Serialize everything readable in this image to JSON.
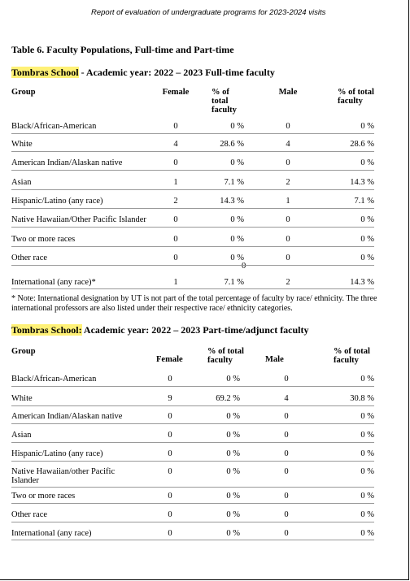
{
  "header": {
    "text": "Report of evaluation of undergraduate programs for 2023-2024 visits"
  },
  "title": "Table 6. Faculty Populations, Full-time and Part-time",
  "table1": {
    "school": "Tombras School",
    "heading": " - Academic year: 2022 – 2023 Full-time faculty",
    "columns": [
      "Group",
      "Female",
      "% of total faculty",
      "Male",
      "% of total faculty"
    ],
    "rows": [
      [
        "Black/African-American",
        "0",
        "0 %",
        "0",
        "0 %"
      ],
      [
        "White",
        "4",
        "28.6 %",
        "4",
        "28.6 %"
      ],
      [
        "American Indian/Alaskan native",
        "0",
        "0 %",
        "0",
        "0 %"
      ],
      [
        "Asian",
        "1",
        "7.1 %",
        "2",
        "14.3 %"
      ],
      [
        "Hispanic/Latino (any race)",
        "2",
        "14.3 %",
        "1",
        "7.1 %"
      ],
      [
        "Native Hawaiian/Other Pacific Islander",
        "0",
        "0 %",
        "0",
        "0 %"
      ],
      [
        "Two or more races",
        "0",
        "0 %",
        "0",
        "0 %"
      ],
      [
        "Other race",
        "0",
        "0 %",
        "0",
        "0 %"
      ],
      [
        "International (any race)*",
        "1",
        "7.1 %",
        "2",
        "14.3 %"
      ]
    ],
    "stray": "0",
    "note": "* Note: International designation by UT is not part of the total percentage of faculty by race/ ethnicity. The three international professors are also listed under their respective race/ ethnicity categories."
  },
  "table2": {
    "school": "Tombras School:",
    "heading": " Academic year: 2022 – 2023 Part-time/adjunct faculty",
    "columns": [
      "Group",
      "Female",
      "% of total faculty",
      "Male",
      "% of total faculty"
    ],
    "rows": [
      [
        "Black/African-American",
        "0",
        "0 %",
        "0",
        "0 %"
      ],
      [
        "White",
        "9",
        "69.2 %",
        "4",
        "30.8 %"
      ],
      [
        "American Indian/Alaskan native",
        "0",
        "0 %",
        "0",
        "0 %"
      ],
      [
        "Asian",
        "0",
        "0 %",
        "0",
        "0 %"
      ],
      [
        "Hispanic/Latino (any race)",
        "0",
        "0 %",
        "0",
        "0 %"
      ],
      [
        "Native Hawaiian/other Pacific Islander",
        "0",
        "0 %",
        "0",
        "0 %"
      ],
      [
        "Two or more races",
        "0",
        "0 %",
        "0",
        "0 %"
      ],
      [
        "Other race",
        "0",
        "0 %",
        "0",
        "0 %"
      ],
      [
        "International (any race)",
        "0",
        "0 %",
        "0",
        "0 %"
      ]
    ]
  }
}
